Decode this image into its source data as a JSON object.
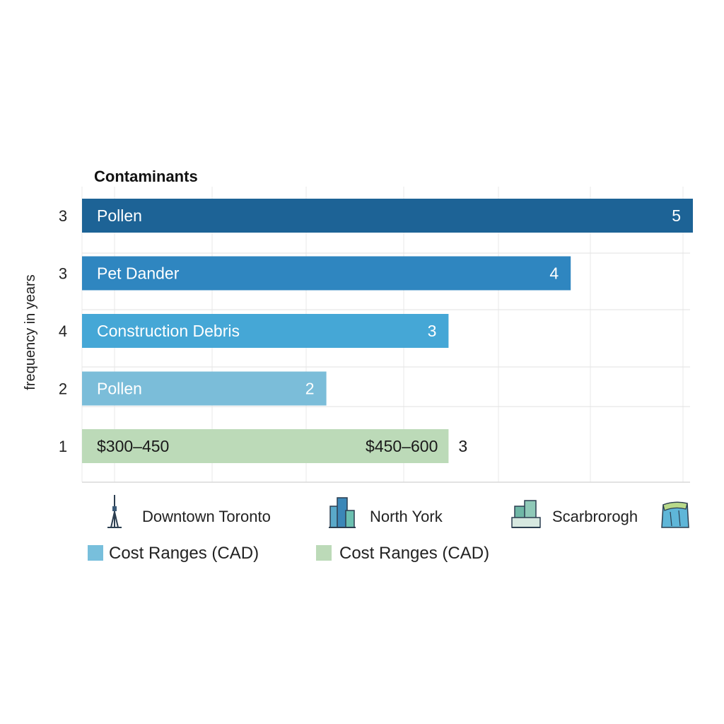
{
  "chart_data": {
    "type": "bar",
    "orientation": "horizontal",
    "title": "Contaminants",
    "ylabel": "frequency in years",
    "xlim": [
      0,
      5
    ],
    "grid": true,
    "bars": [
      {
        "name": "Pollen",
        "value": 5,
        "y_tick": "3",
        "value_label": "5",
        "color": "#1d6396"
      },
      {
        "name": "Pet Dander",
        "value": 4,
        "y_tick": "3",
        "value_label": "4",
        "color": "#2f86c0"
      },
      {
        "name": "Construction Debris",
        "value": 3,
        "y_tick": "4",
        "value_label": "3",
        "color": "#45a7d6"
      },
      {
        "name": "Pollen",
        "value": 2,
        "y_tick": "2",
        "value_label": "2",
        "color": "#7bbdd9"
      },
      {
        "name": "$300–450",
        "secondary_label": "$450–600",
        "value": 3,
        "y_tick": "1",
        "value_label": "3",
        "color": "#bcdab8"
      }
    ],
    "locations": [
      {
        "name": "Downtown Toronto",
        "icon": "cn-tower-icon"
      },
      {
        "name": "North York",
        "icon": "city-buildings-icon"
      },
      {
        "name": "Scarbrorogh",
        "icon": "office-building-icon"
      },
      {
        "name": "",
        "icon": "bluffs-icon"
      }
    ],
    "legend": [
      {
        "label": "Cost Ranges (CAD)",
        "color": "#78bfdc"
      },
      {
        "label": "Cost Ranges (CAD)",
        "color": "#bcdab8"
      }
    ]
  }
}
